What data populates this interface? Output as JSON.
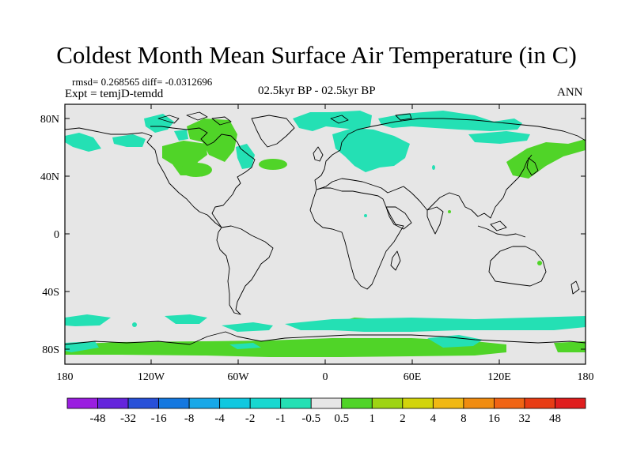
{
  "title": "Coldest Month Mean Surface Air Temperature (in C)",
  "stats": "rmsd= 0.268565 diff= -0.0312696",
  "expt": "Expt = temjD-temdd",
  "period": "02.5kyr BP - 02.5kyr BP",
  "season": "ANN",
  "axes": {
    "lat_ticks": [
      "80N",
      "40N",
      "0",
      "40S",
      "80S"
    ],
    "lon_ticks": [
      "180",
      "120W",
      "60W",
      "0",
      "60E",
      "120E",
      "180"
    ]
  },
  "colorbar": {
    "labels": [
      "-48",
      "-32",
      "-16",
      "-8",
      "-4",
      "-2",
      "-1",
      "-0.5",
      "0.5",
      "1",
      "2",
      "4",
      "8",
      "16",
      "32",
      "48"
    ],
    "colors": [
      "#9a1ee0",
      "#6424dc",
      "#2850d8",
      "#1478e0",
      "#18a8e8",
      "#10c8e0",
      "#18d8d0",
      "#24e0b4",
      "#e6e6e6",
      "#50d428",
      "#9ed414",
      "#d2d40c",
      "#f0b814",
      "#f08c10",
      "#f06414",
      "#e83c14",
      "#e01e1e"
    ]
  },
  "colors": {
    "neutral": "#e6e6e6",
    "cool": "#24e0b4",
    "warm": "#50d428",
    "coastline": "#000000"
  }
}
